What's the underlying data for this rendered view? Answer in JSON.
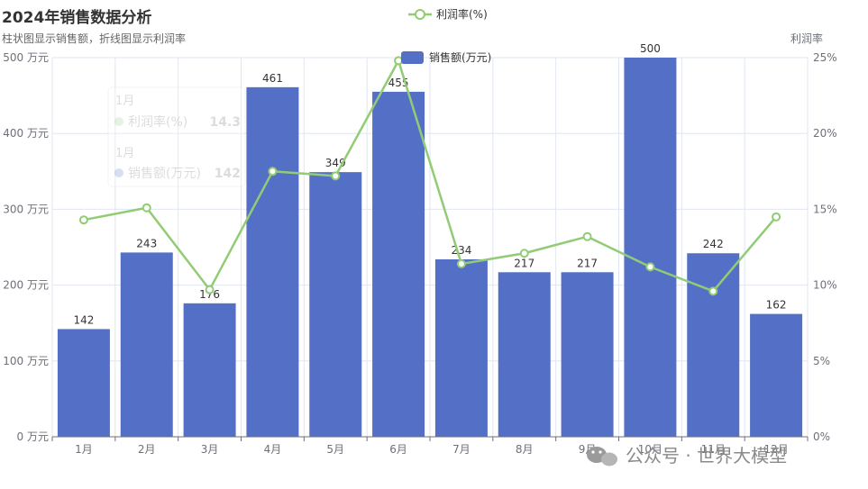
{
  "chart_data": {
    "type": "bar",
    "title": "2024年销售数据分析",
    "subtitle": "柱状图显示销售额，折线图显示利润率",
    "categories": [
      "1月",
      "2月",
      "3月",
      "4月",
      "5月",
      "6月",
      "7月",
      "8月",
      "9月",
      "10月",
      "11月",
      "12月"
    ],
    "series": [
      {
        "name": "销售额(万元)",
        "type": "bar",
        "y_axis": "left",
        "color": "#5470c6",
        "values": [
          142,
          243,
          176,
          461,
          349,
          455,
          234,
          217,
          217,
          500,
          242,
          162
        ]
      },
      {
        "name": "利润率(%)",
        "type": "line",
        "y_axis": "right",
        "color": "#91cc75",
        "values": [
          14.3,
          15.1,
          9.7,
          17.5,
          17.2,
          24.8,
          11.4,
          12.1,
          13.2,
          11.2,
          9.6,
          14.5
        ]
      }
    ],
    "y_left": {
      "ticks": [
        "0 万元",
        "100 万元",
        "200 万元",
        "300 万元",
        "400 万元",
        "500 万元"
      ],
      "ylim": [
        0,
        500
      ]
    },
    "y_right": {
      "name": "利润率",
      "ticks": [
        "0%",
        "5%",
        "10%",
        "15%",
        "20%",
        "25%"
      ],
      "ylim": [
        0,
        25
      ]
    },
    "grid": true,
    "legend": [
      "利润率(%)",
      "销售额(万元)"
    ],
    "tooltip": {
      "category": "1月",
      "rows": [
        {
          "series": "利润率(%)",
          "value": "14.3"
        },
        {
          "series": "销售额(万元)",
          "value": "142"
        }
      ]
    }
  },
  "watermark": {
    "text": "公众号 · 世界大模型"
  }
}
